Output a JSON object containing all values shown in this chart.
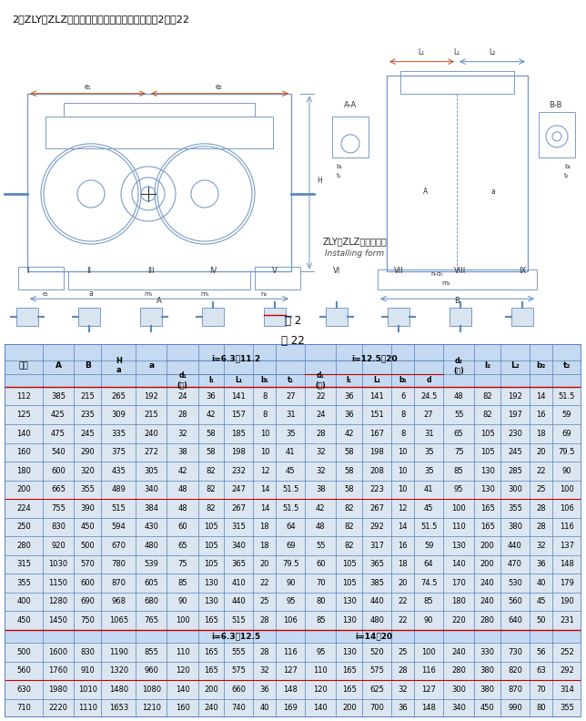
{
  "title_top": "2、ZLY，ZLZ减速器的装配型式及外形尺寸见图2，蚆22",
  "table_title": "表 22",
  "fig_label": "图 2",
  "span_i1": "i=6.3～11.2",
  "span_i2": "i=12.5～20",
  "span_i1b": "i=6.3～12.5",
  "span_i2b": "i=14～20",
  "h_guige": "规格",
  "data_rows": [
    [
      112,
      385,
      215,
      265,
      192,
      24,
      36,
      141,
      8,
      27,
      22,
      36,
      141,
      6,
      24.5,
      48,
      82,
      192,
      14,
      51.5
    ],
    [
      125,
      425,
      235,
      309,
      215,
      28,
      42,
      157,
      8,
      31,
      24,
      36,
      151,
      8,
      27,
      55,
      82,
      197,
      16,
      59
    ],
    [
      140,
      475,
      245,
      335,
      240,
      32,
      58,
      185,
      10,
      35,
      28,
      42,
      167,
      8,
      31,
      65,
      105,
      230,
      18,
      69
    ],
    [
      160,
      540,
      290,
      375,
      272,
      38,
      58,
      198,
      10,
      41,
      32,
      58,
      198,
      10,
      35,
      75,
      105,
      245,
      20,
      79.5
    ],
    [
      180,
      600,
      320,
      435,
      305,
      42,
      82,
      232,
      12,
      45,
      32,
      58,
      208,
      10,
      35,
      85,
      130,
      285,
      22,
      90
    ],
    [
      200,
      665,
      355,
      489,
      340,
      48,
      82,
      247,
      14,
      51.5,
      38,
      58,
      223,
      10,
      41,
      95,
      130,
      300,
      25,
      100
    ],
    [
      224,
      755,
      390,
      515,
      384,
      48,
      82,
      267,
      14,
      51.5,
      42,
      82,
      267,
      12,
      45,
      100,
      165,
      355,
      28,
      106
    ],
    [
      250,
      830,
      450,
      594,
      430,
      60,
      105,
      315,
      18,
      64,
      48,
      82,
      292,
      14,
      51.5,
      110,
      165,
      380,
      28,
      116
    ],
    [
      280,
      920,
      500,
      670,
      480,
      65,
      105,
      340,
      18,
      69,
      55,
      82,
      317,
      16,
      59,
      130,
      200,
      440,
      32,
      137
    ],
    [
      315,
      1030,
      570,
      780,
      539,
      75,
      105,
      365,
      20,
      79.5,
      60,
      105,
      365,
      18,
      64,
      140,
      200,
      470,
      36,
      148
    ],
    [
      355,
      1150,
      600,
      870,
      605,
      85,
      130,
      410,
      22,
      90,
      70,
      105,
      385,
      20,
      74.5,
      170,
      240,
      530,
      40,
      179
    ],
    [
      400,
      1280,
      690,
      968,
      680,
      90,
      130,
      440,
      25,
      95,
      80,
      130,
      440,
      22,
      85,
      180,
      240,
      560,
      45,
      190
    ],
    [
      450,
      1450,
      750,
      1065,
      765,
      100,
      165,
      515,
      28,
      106,
      85,
      130,
      480,
      22,
      90,
      220,
      280,
      640,
      50,
      231
    ]
  ],
  "data_rows2": [
    [
      500,
      1600,
      830,
      1190,
      855,
      110,
      165,
      555,
      28,
      116,
      95,
      130,
      520,
      25,
      100,
      240,
      330,
      730,
      56,
      252
    ],
    [
      560,
      1760,
      910,
      1320,
      960,
      120,
      165,
      575,
      32,
      127,
      110,
      165,
      575,
      28,
      116,
      280,
      380,
      820,
      63,
      292
    ],
    [
      630,
      1980,
      1010,
      1480,
      1080,
      140,
      200,
      660,
      36,
      148,
      120,
      165,
      625,
      32,
      127,
      300,
      380,
      870,
      70,
      314
    ],
    [
      710,
      2220,
      1110,
      1653,
      1210,
      160,
      240,
      740,
      40,
      169,
      140,
      200,
      700,
      36,
      148,
      340,
      450,
      990,
      80,
      355
    ]
  ],
  "header_bg": "#c5d9f1",
  "data_bg": "#dce6f1",
  "border_color": "#4f81bd",
  "red_color": "#c00000",
  "drawing_bg": "#e8eef5"
}
